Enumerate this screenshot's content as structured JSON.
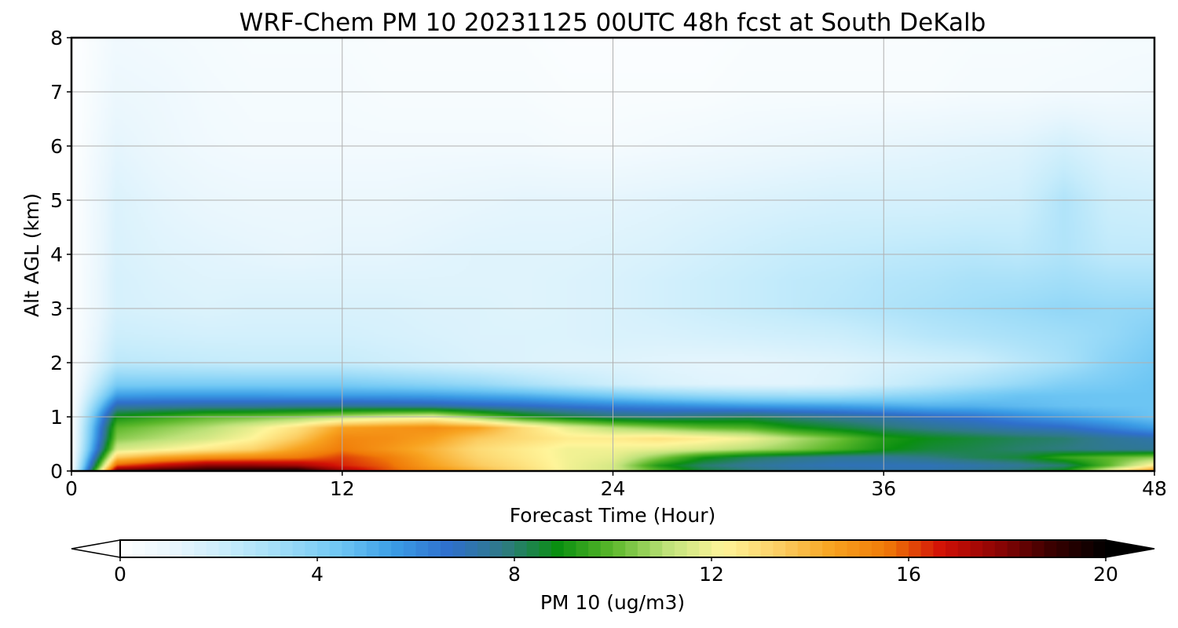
{
  "chart_data": {
    "type": "heatmap",
    "title": "WRF-Chem PM 10  20231125 00UTC 48h fcst at South DeKalb",
    "xlabel": "Forecast Time (Hour)",
    "ylabel": "Alt AGL (km)",
    "xlim": [
      0,
      48
    ],
    "ylim": [
      0,
      8
    ],
    "xticks": [
      "0",
      "12",
      "24",
      "36",
      "48"
    ],
    "yticks": [
      "0",
      "1",
      "2",
      "3",
      "4",
      "5",
      "6",
      "7",
      "8"
    ],
    "grid": true,
    "colorbar": {
      "label": "PM 10  (ug/m3)",
      "range": [
        0,
        20
      ],
      "ticks": [
        "0",
        "4",
        "8",
        "12",
        "16",
        "20"
      ],
      "extend": "both",
      "orientation": "horizontal",
      "placement": "bottom",
      "colors": [
        "#ffffff",
        "#e8f6fd",
        "#c6ecfb",
        "#9ddcf8",
        "#6fc7f4",
        "#3b9de6",
        "#2f6fcd",
        "#2f7a85",
        "#0a8f10",
        "#5cb82b",
        "#bfe27a",
        "#fff59a",
        "#fcd066",
        "#f8a320",
        "#f07a08",
        "#d21006",
        "#8e0404",
        "#3a0000",
        "#000000"
      ]
    },
    "series": [
      {
        "times_h": [
          0,
          2,
          4,
          6,
          8,
          10,
          12,
          14,
          16,
          18,
          20,
          22,
          24,
          26,
          28,
          30,
          32,
          34,
          36,
          38,
          40,
          42,
          44,
          46,
          48
        ],
        "altitudes_km": [
          0.0,
          0.1,
          0.25,
          0.4,
          0.6,
          0.8,
          1.0,
          1.2,
          1.4,
          1.6,
          2.0,
          2.5,
          3.0,
          3.5,
          4.0,
          5.0,
          6.0,
          7.0,
          8.0
        ],
        "pm10_ugm3": [
          [
            0,
            18.5,
            19.2,
            19.5,
            19.6,
            19.8,
            17.5,
            16.0,
            15.0,
            14.0,
            13.0,
            12.0,
            11.5,
            10.0,
            8.5,
            8.0,
            7.5,
            7.5,
            7.2,
            7.2,
            7.5,
            8.0,
            9.0,
            12.0,
            15.0
          ],
          [
            0,
            16.0,
            17.0,
            17.8,
            17.8,
            17.5,
            16.5,
            15.8,
            14.5,
            13.5,
            12.8,
            12.0,
            11.5,
            9.2,
            8.0,
            7.5,
            7.2,
            7.0,
            7.0,
            7.0,
            7.2,
            7.5,
            8.0,
            10.0,
            12.5
          ],
          [
            0,
            13.5,
            14.5,
            15.0,
            15.2,
            15.5,
            16.2,
            15.5,
            14.2,
            13.2,
            12.6,
            12.0,
            11.8,
            10.5,
            9.0,
            8.2,
            7.8,
            7.5,
            7.5,
            7.8,
            8.2,
            8.5,
            9.5,
            10.0,
            10.5
          ],
          [
            0,
            11.5,
            12.0,
            12.6,
            13.2,
            14.5,
            15.5,
            14.8,
            14.0,
            13.0,
            12.5,
            12.0,
            12.0,
            11.8,
            11.5,
            11.0,
            10.5,
            9.8,
            9.0,
            8.5,
            8.3,
            8.0,
            7.8,
            7.6,
            7.5
          ],
          [
            0,
            10.5,
            11.0,
            11.5,
            12.2,
            13.5,
            15.2,
            15.0,
            14.5,
            13.5,
            13.0,
            12.5,
            12.5,
            12.8,
            12.5,
            12.0,
            11.0,
            10.2,
            9.2,
            8.8,
            8.5,
            8.2,
            8.0,
            7.5,
            7.2
          ],
          [
            0,
            10.0,
            10.5,
            11.0,
            11.8,
            12.8,
            14.5,
            14.8,
            15.0,
            14.5,
            13.0,
            11.8,
            11.0,
            10.5,
            10.0,
            9.8,
            9.0,
            8.5,
            8.0,
            7.6,
            7.3,
            7.0,
            6.8,
            6.2,
            5.5
          ],
          [
            0,
            9.0,
            9.5,
            10.0,
            10.2,
            10.5,
            11.0,
            11.5,
            11.8,
            10.5,
            9.2,
            8.5,
            8.0,
            7.8,
            8.0,
            8.2,
            7.8,
            7.5,
            7.2,
            6.8,
            6.5,
            6.0,
            5.5,
            5.0,
            4.5
          ],
          [
            0,
            7.2,
            7.3,
            7.4,
            7.4,
            7.5,
            7.5,
            7.4,
            7.3,
            7.0,
            6.8,
            6.5,
            6.2,
            6.0,
            5.8,
            5.6,
            5.5,
            5.4,
            5.2,
            5.0,
            5.0,
            4.8,
            4.6,
            4.5,
            4.5
          ],
          [
            0,
            5.5,
            5.6,
            5.6,
            5.6,
            5.5,
            5.5,
            5.5,
            5.4,
            5.2,
            5.0,
            4.6,
            4.2,
            3.8,
            3.5,
            3.3,
            3.2,
            3.2,
            3.5,
            3.8,
            4.2,
            4.5,
            4.5,
            4.5,
            4.5
          ],
          [
            0,
            4.2,
            4.2,
            4.2,
            4.2,
            4.2,
            4.2,
            4.0,
            3.8,
            3.5,
            3.0,
            2.5,
            2.0,
            1.6,
            1.4,
            1.3,
            1.3,
            1.5,
            2.0,
            2.5,
            3.0,
            3.5,
            4.0,
            4.2,
            4.5
          ],
          [
            0,
            2.5,
            2.4,
            2.3,
            2.2,
            2.2,
            2.2,
            2.0,
            1.8,
            1.6,
            1.5,
            1.4,
            1.4,
            1.3,
            1.2,
            1.2,
            1.3,
            1.4,
            1.6,
            1.8,
            2.0,
            2.5,
            3.0,
            3.8,
            4.3
          ],
          [
            0,
            2.0,
            1.9,
            1.8,
            1.8,
            1.8,
            1.8,
            1.7,
            1.6,
            1.5,
            1.5,
            1.5,
            1.6,
            1.6,
            1.7,
            1.8,
            1.9,
            2.0,
            2.3,
            2.6,
            2.8,
            3.0,
            3.2,
            3.5,
            4.0
          ],
          [
            0,
            1.7,
            1.6,
            1.5,
            1.6,
            1.6,
            1.6,
            1.6,
            1.5,
            1.5,
            1.4,
            1.5,
            1.6,
            1.8,
            2.0,
            2.2,
            2.4,
            2.6,
            2.8,
            3.0,
            3.2,
            3.4,
            3.6,
            3.5,
            3.6
          ],
          [
            0,
            1.7,
            1.5,
            1.4,
            1.4,
            1.4,
            1.4,
            1.4,
            1.4,
            1.4,
            1.4,
            1.5,
            1.6,
            1.8,
            2.0,
            2.2,
            2.4,
            2.5,
            2.7,
            2.8,
            3.0,
            3.0,
            3.2,
            3.0,
            3.0
          ],
          [
            0,
            1.6,
            1.4,
            1.3,
            1.2,
            1.1,
            1.2,
            1.2,
            1.3,
            1.4,
            1.4,
            1.4,
            1.5,
            1.6,
            1.8,
            2.0,
            2.2,
            2.3,
            2.4,
            2.5,
            2.6,
            2.5,
            2.8,
            2.4,
            2.4
          ],
          [
            0,
            1.5,
            1.2,
            1.0,
            0.9,
            0.9,
            0.9,
            0.9,
            1.0,
            1.1,
            1.2,
            1.2,
            1.2,
            1.3,
            1.4,
            1.5,
            1.6,
            1.7,
            1.7,
            1.7,
            1.8,
            1.9,
            2.8,
            2.0,
            1.9
          ],
          [
            0,
            1.2,
            0.9,
            0.7,
            0.6,
            0.6,
            0.6,
            0.6,
            0.6,
            0.6,
            0.6,
            0.5,
            0.5,
            0.6,
            0.7,
            0.8,
            0.9,
            1.0,
            1.1,
            1.2,
            1.3,
            1.4,
            1.8,
            1.4,
            1.3
          ],
          [
            0,
            0.9,
            0.8,
            0.6,
            0.5,
            0.5,
            0.5,
            0.4,
            0.4,
            0.4,
            0.4,
            0.3,
            0.3,
            0.3,
            0.3,
            0.4,
            0.4,
            0.4,
            0.4,
            0.4,
            0.5,
            0.5,
            0.6,
            0.6,
            0.7
          ],
          [
            0,
            0.7,
            0.6,
            0.5,
            0.4,
            0.4,
            0.4,
            0.3,
            0.3,
            0.3,
            0.3,
            0.2,
            0.2,
            0.2,
            0.2,
            0.3,
            0.3,
            0.3,
            0.3,
            0.3,
            0.4,
            0.4,
            0.4,
            0.5,
            0.5
          ]
        ]
      }
    ]
  }
}
